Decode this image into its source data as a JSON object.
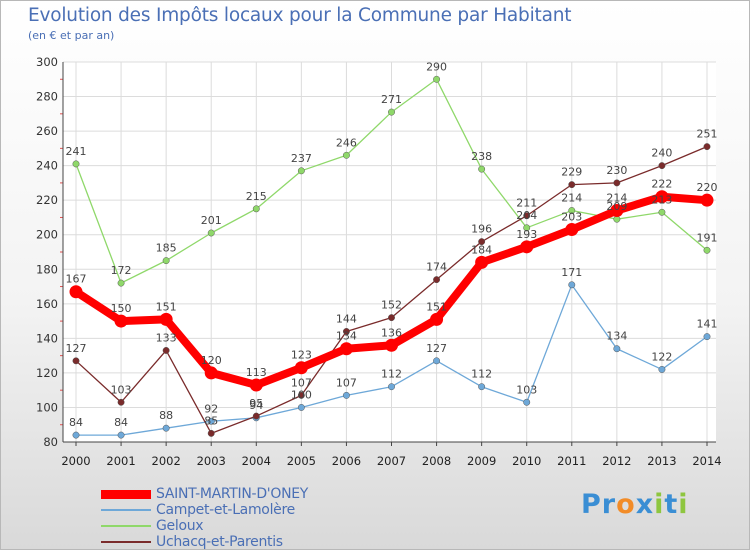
{
  "chart_data": {
    "type": "line",
    "title": "Evolution des Impôts locaux pour la Commune par Habitant",
    "subtitle": "(en € et par an)",
    "xlabel": "",
    "ylabel": "",
    "categories": [
      "2000",
      "2001",
      "2002",
      "2003",
      "2004",
      "2005",
      "2006",
      "2007",
      "2008",
      "2009",
      "2010",
      "2011",
      "2012",
      "2013",
      "2014"
    ],
    "ylim": [
      80,
      300
    ],
    "yticks": [
      80,
      100,
      120,
      140,
      160,
      180,
      200,
      220,
      240,
      260,
      280,
      300
    ],
    "grid": true,
    "legend_position": "bottom-left",
    "series": [
      {
        "name": "SAINT-MARTIN-D'ONEY",
        "color": "#ff0000",
        "values": [
          167,
          150,
          151,
          120,
          113,
          123,
          134,
          136,
          151,
          184,
          193,
          203,
          214,
          222,
          220
        ]
      },
      {
        "name": "Campet-et-Lamolère",
        "color": "#6ea8d8",
        "values": [
          84,
          84,
          88,
          92,
          94,
          100,
          107,
          112,
          127,
          112,
          103,
          171,
          134,
          122,
          141
        ]
      },
      {
        "name": "Geloux",
        "color": "#8fd86a",
        "values": [
          241,
          172,
          185,
          201,
          215,
          237,
          246,
          271,
          290,
          238,
          204,
          214,
          209,
          213,
          191
        ]
      },
      {
        "name": "Uchacq-et-Parentis",
        "color": "#7a2b2b",
        "values": [
          127,
          103,
          133,
          85,
          95,
          107,
          144,
          152,
          174,
          196,
          211,
          229,
          230,
          240,
          251
        ]
      }
    ]
  },
  "brand": {
    "letters": [
      "P",
      "r",
      "o",
      "x",
      "i",
      "t",
      "i"
    ],
    "colors": [
      "#3a8ed4",
      "#3a8ed4",
      "#f28c28",
      "#3a8ed4",
      "#8ec63f",
      "#3a8ed4",
      "#8ec63f"
    ]
  }
}
